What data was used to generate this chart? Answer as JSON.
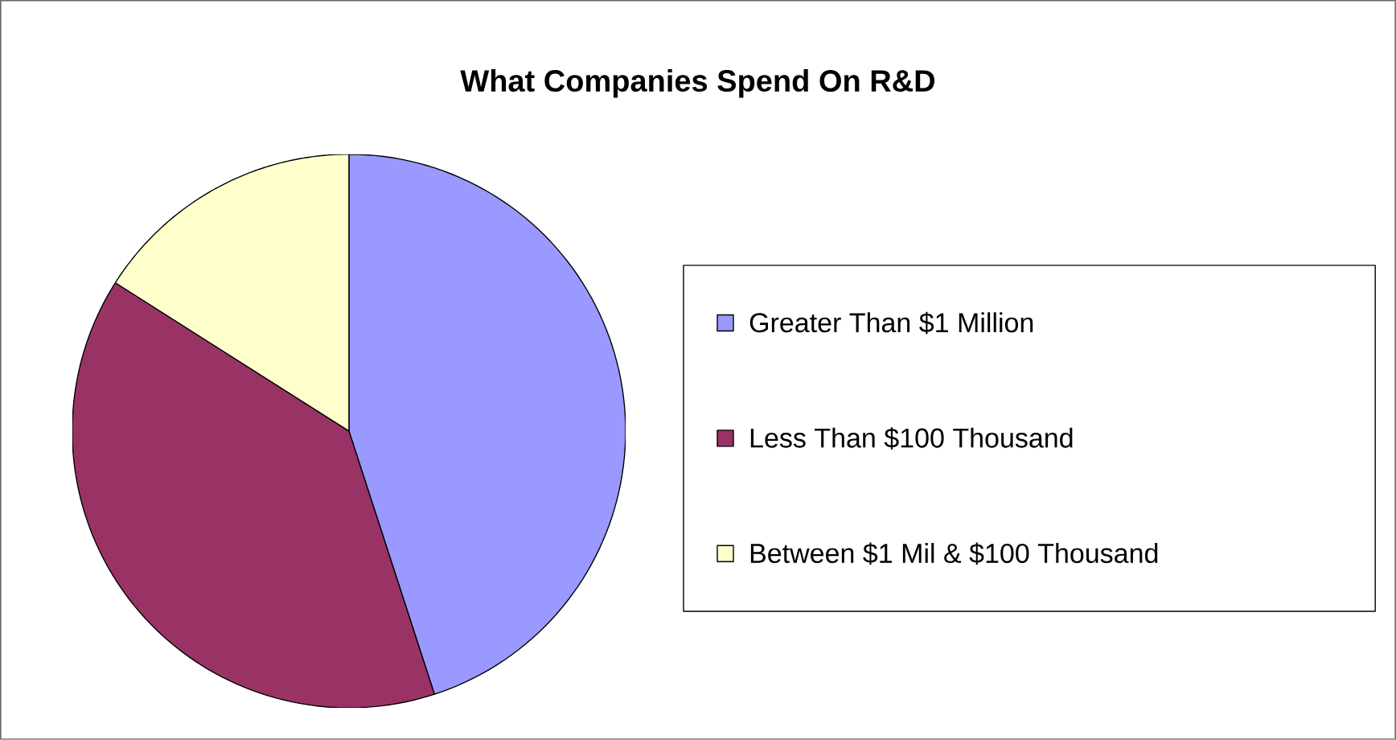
{
  "chart_data": {
    "type": "pie",
    "title": "What Companies Spend On R&D",
    "categories": [
      "Greater Than $1 Million",
      "Less Than $100 Thousand",
      "Between $1 Mil & $100 Thousand"
    ],
    "values": [
      45,
      39,
      16
    ],
    "colors": [
      "#9999ff",
      "#993366",
      "#ffffcc"
    ],
    "legend": "right"
  }
}
